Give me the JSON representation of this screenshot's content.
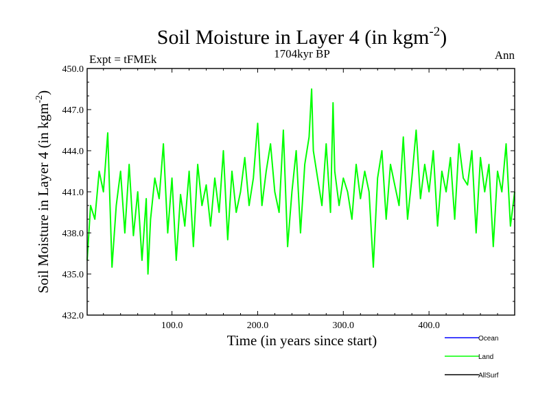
{
  "chart_data": {
    "type": "line",
    "title": "Soil Moisture in Layer 4 (in kgm",
    "title_sup": "-2",
    "title_close": ")",
    "experiment": "Expt = tFMEk",
    "period": "1704kyr BP",
    "season": "Ann",
    "xlabel": "Time (in years since start)",
    "ylabel": "Soil Moisture in Layer 4 (in kgm",
    "ylabel_sup": "-2",
    "ylabel_close": ")",
    "xlim": [
      1,
      500
    ],
    "ylim": [
      432.0,
      450.0
    ],
    "x_ticks": [
      {
        "value": 100,
        "label": "100.0"
      },
      {
        "value": 200,
        "label": "200.0"
      },
      {
        "value": 300,
        "label": "300.0"
      },
      {
        "value": 400,
        "label": "400.0"
      }
    ],
    "y_ticks": [
      {
        "value": 432,
        "label": "432.0"
      },
      {
        "value": 435,
        "label": "435.0"
      },
      {
        "value": 438,
        "label": "438.0"
      },
      {
        "value": 441,
        "label": "441.0"
      },
      {
        "value": 444,
        "label": "444.0"
      },
      {
        "value": 447,
        "label": "447.0"
      },
      {
        "value": 450,
        "label": "450.0"
      }
    ],
    "legend": [
      {
        "name": "Ocean",
        "color": "#0000ff"
      },
      {
        "name": "Land",
        "color": "#00ff00"
      },
      {
        "name": "AllSurf",
        "color": "#000000"
      }
    ],
    "series": [
      {
        "name": "Land",
        "color": "#00ff00",
        "x": [
          1,
          5,
          10,
          15,
          20,
          25,
          30,
          35,
          40,
          45,
          50,
          55,
          60,
          65,
          70,
          72,
          75,
          80,
          85,
          90,
          95,
          100,
          105,
          110,
          115,
          120,
          125,
          130,
          135,
          140,
          145,
          150,
          155,
          160,
          165,
          170,
          175,
          180,
          185,
          190,
          195,
          200,
          205,
          210,
          215,
          220,
          225,
          230,
          235,
          240,
          245,
          250,
          255,
          260,
          263,
          265,
          270,
          275,
          280,
          285,
          288,
          290,
          295,
          300,
          305,
          310,
          315,
          320,
          325,
          330,
          335,
          340,
          345,
          350,
          355,
          360,
          365,
          370,
          375,
          380,
          385,
          390,
          395,
          400,
          405,
          410,
          415,
          420,
          425,
          430,
          435,
          440,
          445,
          450,
          455,
          460,
          465,
          470,
          475,
          480,
          485,
          490,
          495,
          500
        ],
        "y": [
          436.0,
          440.0,
          439.0,
          442.5,
          441.0,
          445.3,
          435.5,
          440.0,
          442.5,
          438.0,
          443.0,
          437.8,
          441.0,
          436.0,
          440.5,
          435.0,
          439.0,
          442.0,
          440.5,
          444.5,
          438.0,
          442.0,
          436.0,
          440.8,
          438.5,
          442.5,
          437.0,
          443.0,
          440.0,
          441.5,
          438.5,
          442.0,
          439.5,
          444.0,
          437.5,
          442.5,
          439.5,
          441.0,
          443.5,
          440.0,
          442.0,
          446.0,
          440.0,
          442.5,
          444.5,
          441.0,
          439.5,
          445.5,
          437.0,
          441.0,
          444.0,
          438.0,
          443.0,
          445.0,
          448.5,
          444.0,
          442.0,
          440.0,
          444.5,
          439.5,
          447.5,
          442.5,
          440.0,
          442.0,
          441.0,
          439.0,
          443.0,
          440.5,
          442.5,
          441.0,
          435.5,
          442.0,
          444.0,
          439.0,
          443.0,
          441.5,
          440.0,
          445.0,
          439.0,
          442.0,
          445.5,
          440.5,
          443.0,
          441.0,
          444.0,
          438.5,
          442.5,
          441.0,
          443.5,
          439.0,
          444.5,
          442.0,
          441.5,
          444.0,
          438.0,
          443.5,
          441.0,
          443.0,
          437.0,
          442.5,
          441.0,
          444.5,
          438.5,
          441.0
        ]
      }
    ]
  }
}
